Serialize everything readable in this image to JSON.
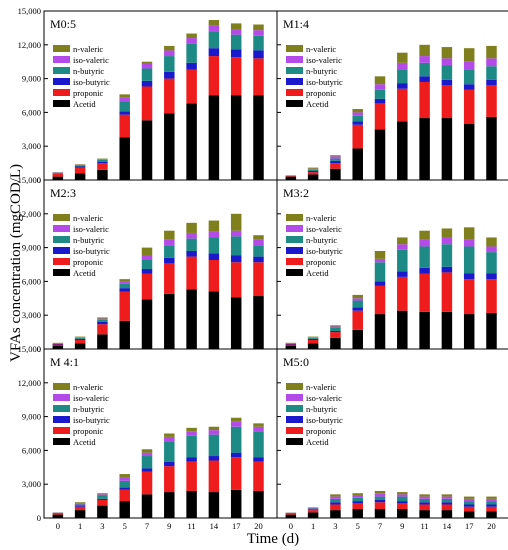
{
  "figure": {
    "ylabel": "VFAs concentration (mgCOD/L)",
    "xlabel": "Time (d)"
  },
  "chart_data": {
    "type": "bar",
    "stacked": true,
    "ylabel": "VFAs concentration (mgCOD/L)",
    "xlabel": "Time (d)",
    "ylim": [
      0,
      15000
    ],
    "yticks": [
      "0",
      "3,000",
      "6,000",
      "9,000",
      "12,000",
      "15,000"
    ],
    "categories": [
      "0",
      "1",
      "3",
      "5",
      "7",
      "9",
      "11",
      "14",
      "17",
      "20"
    ],
    "series_colors": {
      "Acetid": "#000000",
      "proponic": "#ee1c1c",
      "iso-butyric": "#1a1acc",
      "n-butyric": "#1e8a86",
      "iso-valeric": "#b44be8",
      "n-valeric": "#7f7f1e"
    },
    "legend_order": [
      "n-valeric",
      "iso-valeric",
      "n-butyric",
      "iso-butyric",
      "proponic",
      "Acetid"
    ],
    "stack_order": [
      "Acetid",
      "proponic",
      "iso-butyric",
      "n-butyric",
      "iso-valeric",
      "n-valeric"
    ],
    "panels": [
      {
        "title": "M0:5",
        "show_yticks": true,
        "series": [
          {
            "name": "Acetid",
            "values": [
              300,
              600,
              900,
              3800,
              5300,
              5900,
              6800,
              7500,
              7500,
              7500
            ]
          },
          {
            "name": "proponic",
            "values": [
              250,
              500,
              600,
              2000,
              3000,
              3100,
              3000,
              3500,
              3400,
              3300
            ]
          },
          {
            "name": "iso-butyric",
            "values": [
              50,
              100,
              100,
              300,
              500,
              600,
              600,
              700,
              700,
              700
            ]
          },
          {
            "name": "n-butyric",
            "values": [
              50,
              100,
              200,
              900,
              1100,
              1400,
              1700,
              1500,
              1300,
              1300
            ]
          },
          {
            "name": "iso-valeric",
            "values": [
              30,
              50,
              60,
              300,
              400,
              500,
              500,
              500,
              500,
              500
            ]
          },
          {
            "name": "n-valeric",
            "values": [
              20,
              50,
              40,
              300,
              200,
              400,
              400,
              500,
              500,
              500
            ]
          }
        ]
      },
      {
        "title": "M1:4",
        "show_yticks": false,
        "series": [
          {
            "name": "Acetid",
            "values": [
              300,
              500,
              1000,
              2800,
              4500,
              5200,
              5500,
              5500,
              5000,
              5600
            ]
          },
          {
            "name": "proponic",
            "values": [
              50,
              200,
              500,
              2100,
              2300,
              2900,
              3200,
              2900,
              3000,
              2800
            ]
          },
          {
            "name": "iso-butyric",
            "values": [
              20,
              100,
              200,
              300,
              400,
              500,
              500,
              500,
              500,
              500
            ]
          },
          {
            "name": "n-butyric",
            "values": [
              20,
              100,
              200,
              500,
              800,
              1200,
              1200,
              1300,
              1300,
              1200
            ]
          },
          {
            "name": "iso-valeric",
            "values": [
              20,
              100,
              200,
              300,
              500,
              600,
              600,
              600,
              700,
              700
            ]
          },
          {
            "name": "n-valeric",
            "values": [
              10,
              100,
              100,
              300,
              700,
              900,
              1000,
              1000,
              1200,
              1100
            ]
          }
        ]
      },
      {
        "title": "M2:3",
        "show_yticks": true,
        "series": [
          {
            "name": "Acetid",
            "values": [
              300,
              500,
              1300,
              2500,
              4400,
              4900,
              5300,
              5100,
              4600,
              4700
            ]
          },
          {
            "name": "proponic",
            "values": [
              100,
              300,
              900,
              2600,
              2300,
              2700,
              2900,
              2800,
              3100,
              3000
            ]
          },
          {
            "name": "iso-butyric",
            "values": [
              50,
              100,
              200,
              300,
              400,
              500,
              500,
              600,
              600,
              500
            ]
          },
          {
            "name": "n-butyric",
            "values": [
              50,
              100,
              200,
              400,
              800,
              1100,
              1100,
              1400,
              1700,
              1000
            ]
          },
          {
            "name": "iso-valeric",
            "values": [
              30,
              50,
              100,
              200,
              400,
              500,
              500,
              500,
              500,
              500
            ]
          },
          {
            "name": "n-valeric",
            "values": [
              20,
              50,
              100,
              200,
              700,
              800,
              900,
              1000,
              1500,
              400
            ]
          }
        ]
      },
      {
        "title": "M3:2",
        "show_yticks": false,
        "series": [
          {
            "name": "Acetid",
            "values": [
              300,
              500,
              1000,
              1700,
              3100,
              3400,
              3300,
              3300,
              3100,
              3200
            ]
          },
          {
            "name": "proponic",
            "values": [
              100,
              300,
              500,
              1700,
              2500,
              3000,
              3400,
              3500,
              3100,
              3000
            ]
          },
          {
            "name": "iso-butyric",
            "values": [
              50,
              100,
              100,
              300,
              400,
              500,
              500,
              500,
              500,
              500
            ]
          },
          {
            "name": "n-butyric",
            "values": [
              50,
              100,
              300,
              600,
              1700,
              1900,
              1900,
              2000,
              2400,
              1900
            ]
          },
          {
            "name": "iso-valeric",
            "values": [
              30,
              50,
              100,
              200,
              300,
              500,
              600,
              600,
              600,
              500
            ]
          },
          {
            "name": "n-valeric",
            "values": [
              20,
              50,
              100,
              300,
              700,
              600,
              800,
              800,
              1100,
              800
            ]
          }
        ]
      },
      {
        "title": "M 4:1",
        "show_yticks": true,
        "series": [
          {
            "name": "Acetid",
            "values": [
              300,
              700,
              1100,
              1500,
              2100,
              2300,
              2400,
              2300,
              2500,
              2400
            ]
          },
          {
            "name": "proponic",
            "values": [
              100,
              300,
              500,
              1000,
              2000,
              2300,
              2600,
              2800,
              2900,
              2600
            ]
          },
          {
            "name": "iso-butyric",
            "values": [
              30,
              100,
              100,
              200,
              300,
              400,
              400,
              400,
              400,
              400
            ]
          },
          {
            "name": "n-butyric",
            "values": [
              30,
              100,
              300,
              600,
              1100,
              1800,
              1900,
              1900,
              2300,
              2300
            ]
          },
          {
            "name": "iso-valeric",
            "values": [
              20,
              100,
              100,
              300,
              300,
              400,
              400,
              400,
              500,
              400
            ]
          },
          {
            "name": "n-valeric",
            "values": [
              20,
              100,
              100,
              300,
              300,
              300,
              300,
              300,
              300,
              300
            ]
          }
        ]
      },
      {
        "title": "M5:0",
        "show_yticks": false,
        "series": [
          {
            "name": "Acetid",
            "values": [
              300,
              500,
              700,
              800,
              800,
              800,
              700,
              700,
              600,
              600
            ]
          },
          {
            "name": "proponic",
            "values": [
              100,
              200,
              500,
              500,
              600,
              500,
              500,
              500,
              400,
              400
            ]
          },
          {
            "name": "iso-butyric",
            "values": [
              30,
              50,
              200,
              200,
              200,
              200,
              200,
              200,
              200,
              200
            ]
          },
          {
            "name": "n-butyric",
            "values": [
              20,
              100,
              300,
              300,
              300,
              400,
              300,
              300,
              300,
              300
            ]
          },
          {
            "name": "iso-valeric",
            "values": [
              20,
              50,
              200,
              200,
              300,
              200,
              200,
              200,
              200,
              200
            ]
          },
          {
            "name": "n-valeric",
            "values": [
              20,
              50,
              200,
              200,
              200,
              200,
              200,
              200,
              200,
              200
            ]
          }
        ]
      }
    ]
  }
}
